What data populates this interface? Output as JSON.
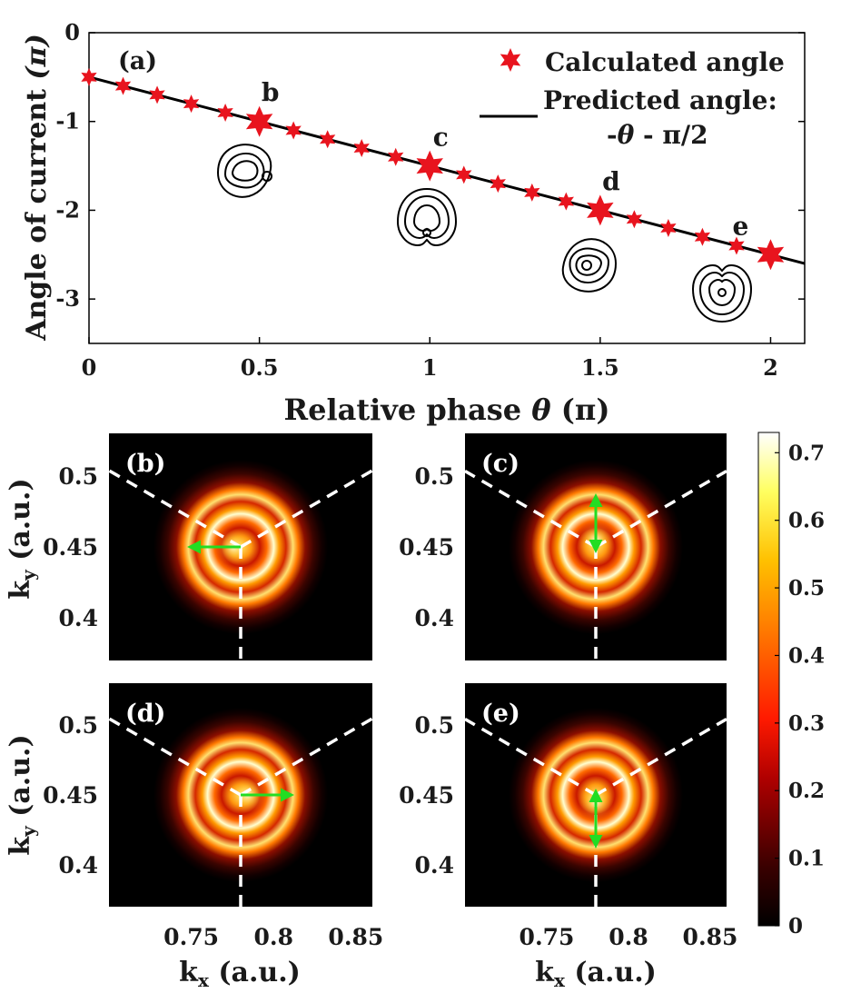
{
  "chart_data": [
    {
      "panel": "a",
      "type": "scatter",
      "panel_label": "(a)",
      "xlabel_main": "Relative phase ",
      "xlabel_symbol": "θ",
      "xlabel_unit": " (π)",
      "ylabel_main": "Angle of current ",
      "ylabel_unit": "(π)",
      "xlim": [
        0,
        2.1
      ],
      "ylim": [
        -3.5,
        0
      ],
      "xticks": [
        0,
        0.5,
        1,
        1.5,
        2
      ],
      "xtick_labels": [
        "0",
        "0.5",
        "1",
        "1.5",
        "2"
      ],
      "yticks": [
        0,
        -1,
        -2,
        -3
      ],
      "ytick_labels": [
        "0",
        "-1",
        "-2",
        "-3"
      ],
      "series": [
        {
          "name": "Calculated angle",
          "marker": "star",
          "color": "#e8141e",
          "x": [
            0,
            0.1,
            0.2,
            0.3,
            0.4,
            0.5,
            0.6,
            0.7,
            0.8,
            0.9,
            1.0,
            1.1,
            1.2,
            1.3,
            1.4,
            1.5,
            1.6,
            1.7,
            1.8,
            1.9,
            2.0
          ],
          "y": [
            -0.5,
            -0.6,
            -0.7,
            -0.8,
            -0.9,
            -1.0,
            -1.1,
            -1.2,
            -1.3,
            -1.4,
            -1.5,
            -1.6,
            -1.7,
            -1.8,
            -1.9,
            -2.0,
            -2.1,
            -2.2,
            -2.3,
            -2.4,
            -2.5
          ],
          "highlighted_x": [
            0.5,
            1.0,
            1.5,
            2.0
          ]
        },
        {
          "name": "Predicted angle:",
          "formula_a": "-",
          "formula_theta": "θ",
          "formula_b": " - π/2",
          "type": "line",
          "color": "#000000",
          "slope": -1,
          "intercept": -0.5,
          "x_range": [
            0,
            2.1
          ]
        }
      ],
      "annotations": [
        {
          "text": "b",
          "x": 0.5,
          "y": -1.0
        },
        {
          "text": "c",
          "x": 1.0,
          "y": -1.5
        },
        {
          "text": "d",
          "x": 1.5,
          "y": -2.0
        },
        {
          "text": "e",
          "x": 1.88,
          "y": -2.5
        }
      ],
      "legend_position": "top-right"
    },
    {
      "panel": "b",
      "type": "heatmap",
      "label": "(b)",
      "center_kx": 0.78,
      "center_ky": 0.45,
      "arrow_angle_pi": -1.0,
      "xlim": [
        0.7,
        0.86
      ],
      "ylim": [
        0.37,
        0.53
      ]
    },
    {
      "panel": "c",
      "type": "heatmap",
      "label": "(c)",
      "center_kx": 0.78,
      "center_ky": 0.45,
      "arrow_angle_pi": -1.5,
      "xlim": [
        0.7,
        0.86
      ],
      "ylim": [
        0.37,
        0.53
      ]
    },
    {
      "panel": "d",
      "type": "heatmap",
      "label": "(d)",
      "center_kx": 0.78,
      "center_ky": 0.45,
      "arrow_angle_pi": -2.0,
      "xlim": [
        0.7,
        0.86
      ],
      "ylim": [
        0.37,
        0.53
      ]
    },
    {
      "panel": "e",
      "type": "heatmap",
      "label": "(e)",
      "center_kx": 0.78,
      "center_ky": 0.45,
      "arrow_angle_pi": -2.5,
      "xlim": [
        0.7,
        0.86
      ],
      "ylim": [
        0.37,
        0.53
      ]
    }
  ],
  "heatmap_axes": {
    "xticks": [
      0.75,
      0.8,
      0.85
    ],
    "xtick_labels": [
      "0.75",
      "0.8",
      "0.85"
    ],
    "yticks": [
      0.5,
      0.45,
      0.4
    ],
    "ytick_labels": [
      "0.5",
      "0.45",
      "0.4"
    ],
    "xlabel_main": "k",
    "xlabel_sub": "x",
    "xlabel_unit": " (a.u.)",
    "ylabel_main": "k",
    "ylabel_sub": "y",
    "ylabel_unit": " (a.u.)"
  },
  "colorbar": {
    "range": [
      0,
      0.73
    ],
    "ticks": [
      0,
      0.1,
      0.2,
      0.3,
      0.4,
      0.5,
      0.6,
      0.7
    ],
    "tick_labels": [
      "0",
      "0.1",
      "0.2",
      "0.3",
      "0.4",
      "0.5",
      "0.6",
      "0.7"
    ],
    "colormap": "hot"
  },
  "colors": {
    "star": "#e8141e",
    "line": "#000000",
    "arrow": "#22dd22",
    "dashed": "#ffffff",
    "heat_background": "#000000"
  }
}
